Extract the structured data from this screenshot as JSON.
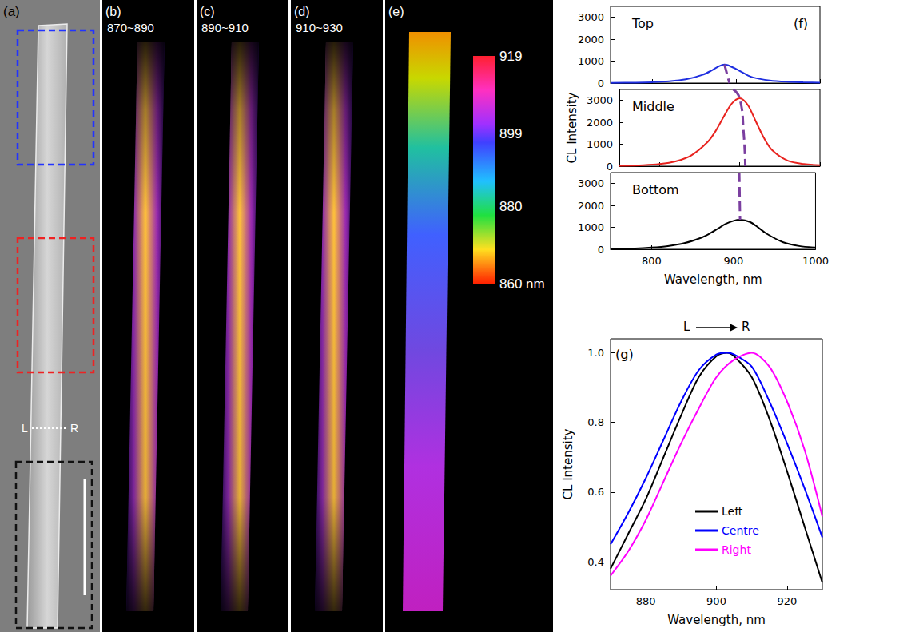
{
  "images": [
    {
      "panel_label": "(a)",
      "marker_labels": [
        "L",
        "R"
      ]
    },
    {
      "panel_label": "(b)",
      "band": "870~890"
    },
    {
      "panel_label": "(c)",
      "band": "890~910"
    },
    {
      "panel_label": "(d)",
      "band": "910~930"
    },
    {
      "panel_label": "(e)",
      "colorbar": {
        "range": [
          860,
          919
        ],
        "ticks": [
          919,
          899,
          880,
          {
            "value": 860,
            "label": "860 nm"
          }
        ]
      }
    }
  ],
  "chart_data": [
    {
      "type": "line",
      "panel_label": "(f)",
      "title": "Top",
      "xlim": [
        750,
        1000
      ],
      "xticks": [
        800,
        900,
        1000
      ],
      "ylim": [
        0,
        3500
      ],
      "yticks": [
        0,
        1000,
        2000,
        3000
      ],
      "grid": false,
      "tick_labels": "y",
      "series": [
        {
          "color": "#1f2fe0",
          "x": [
            750,
            780,
            800,
            820,
            840,
            860,
            870,
            880,
            886,
            890,
            900,
            910,
            920,
            940,
            960,
            980,
            1000
          ],
          "values": [
            10,
            20,
            40,
            80,
            170,
            380,
            560,
            780,
            850,
            820,
            640,
            430,
            260,
            120,
            60,
            35,
            20
          ]
        },
        {
          "color": "#7b3fa0",
          "line_style": "dashed",
          "x": [
            886,
            892
          ],
          "values": [
            850,
            0
          ]
        }
      ]
    },
    {
      "type": "line",
      "title": "Middle",
      "y_label": "CL Intensity",
      "xlim": [
        750,
        1000
      ],
      "xticks": [
        800,
        900,
        1000
      ],
      "ylim": [
        0,
        3500
      ],
      "yticks": [
        0,
        1000,
        2000,
        3000
      ],
      "grid": false,
      "tick_labels": "y",
      "series": [
        {
          "color": "#e8231f",
          "x": [
            750,
            780,
            800,
            820,
            840,
            860,
            870,
            880,
            890,
            900,
            910,
            920,
            930,
            940,
            960,
            980,
            1000
          ],
          "values": [
            20,
            50,
            100,
            220,
            500,
            1100,
            1600,
            2250,
            2850,
            3100,
            2800,
            2050,
            1300,
            750,
            250,
            100,
            50
          ]
        },
        {
          "color": "#7b3fa0",
          "line_style": "dashed",
          "x": [
            892,
            900,
            905,
            907
          ],
          "values": [
            3500,
            3100,
            1500,
            0
          ]
        }
      ]
    },
    {
      "type": "line",
      "title": "Bottom",
      "x_label": "Wavelength, nm",
      "xlim": [
        750,
        1000
      ],
      "xticks": [
        800,
        900,
        1000
      ],
      "ylim": [
        0,
        3500
      ],
      "yticks": [
        0,
        1000,
        2000,
        3000
      ],
      "grid": false,
      "series": [
        {
          "color": "#000000",
          "x": [
            750,
            780,
            800,
            820,
            840,
            860,
            870,
            880,
            890,
            900,
            908,
            920,
            930,
            940,
            960,
            980,
            1000
          ],
          "values": [
            20,
            40,
            80,
            150,
            280,
            520,
            700,
            920,
            1150,
            1300,
            1350,
            1250,
            1000,
            720,
            330,
            150,
            80
          ]
        },
        {
          "color": "#7b3fa0",
          "line_style": "dashed",
          "x": [
            907,
            908
          ],
          "values": [
            3500,
            1350
          ]
        }
      ]
    },
    {
      "type": "line",
      "panel_label": "(g)",
      "x_label": "Wavelength, nm",
      "y_label": "CL Intensity",
      "xlim": [
        870,
        930
      ],
      "xticks": [
        880,
        900,
        920
      ],
      "ylim": [
        0.32,
        1.04
      ],
      "yticks": [
        0.4,
        0.6,
        0.8,
        {
          "value": 1,
          "label": "1.0"
        }
      ],
      "grid": false,
      "legend": "bottom",
      "annotations": [
        "L",
        "R"
      ],
      "series": [
        {
          "name": "Left",
          "color": "#000000",
          "x": [
            870,
            875,
            880,
            885,
            890,
            895,
            900,
            903,
            905,
            910,
            915,
            920,
            925,
            930
          ],
          "values": [
            0.38,
            0.48,
            0.58,
            0.7,
            0.82,
            0.93,
            0.99,
            1.0,
            0.99,
            0.93,
            0.81,
            0.66,
            0.5,
            0.34
          ]
        },
        {
          "name": "Centre",
          "color": "#0000ff",
          "x": [
            870,
            875,
            880,
            885,
            890,
            895,
            900,
            903,
            905,
            910,
            915,
            920,
            925,
            930
          ],
          "values": [
            0.45,
            0.54,
            0.64,
            0.75,
            0.86,
            0.95,
            0.995,
            1.0,
            0.995,
            0.96,
            0.86,
            0.74,
            0.61,
            0.47
          ]
        },
        {
          "name": "Right",
          "color": "#ff00ff",
          "x": [
            870,
            875,
            880,
            885,
            890,
            895,
            900,
            905,
            910,
            915,
            920,
            925,
            930
          ],
          "values": [
            0.36,
            0.43,
            0.52,
            0.63,
            0.74,
            0.84,
            0.93,
            0.98,
            1.0,
            0.96,
            0.86,
            0.72,
            0.53
          ]
        }
      ]
    }
  ]
}
